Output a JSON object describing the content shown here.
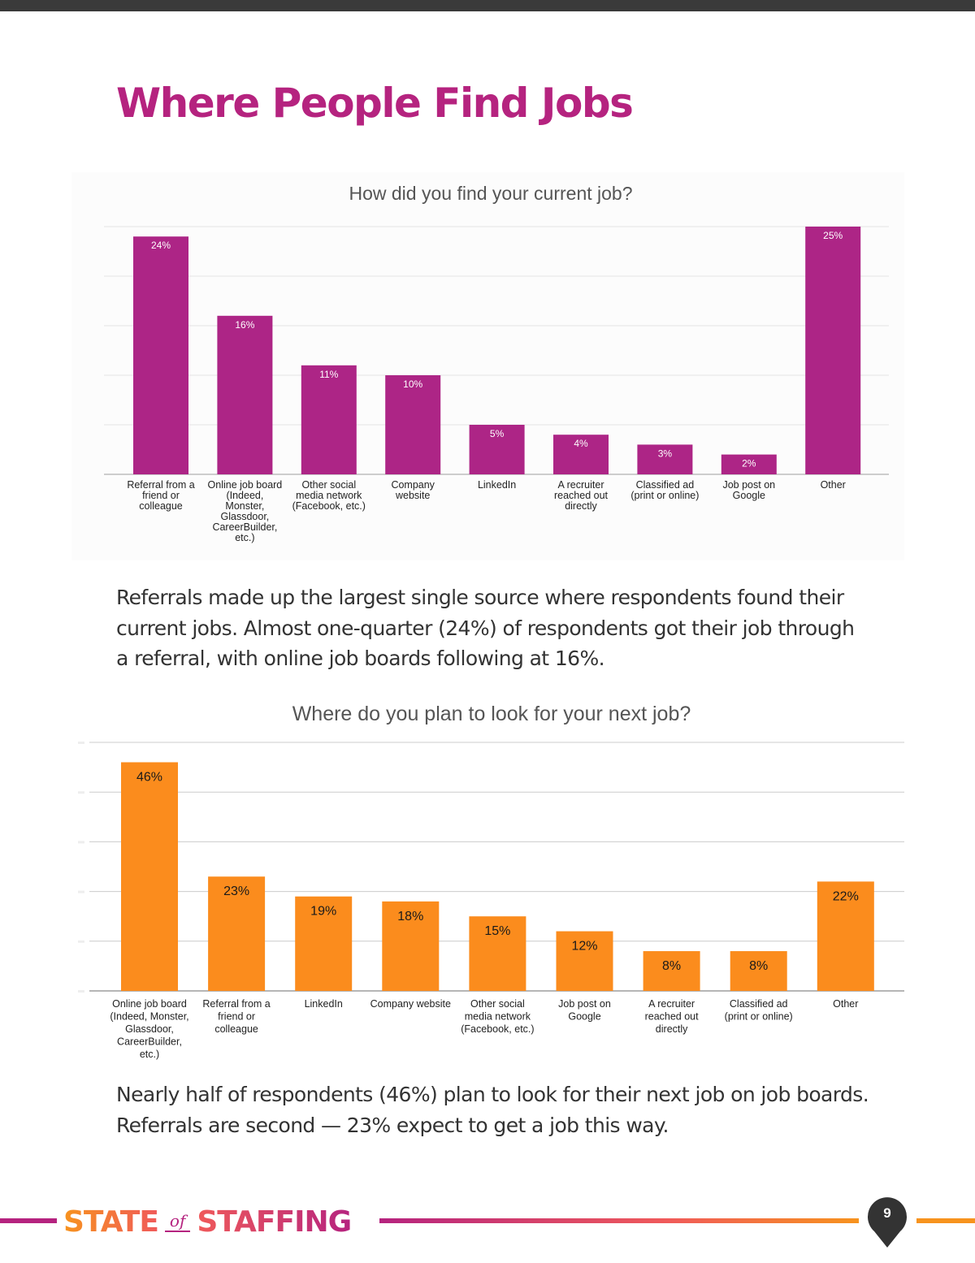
{
  "page": {
    "title": "Where People Find Jobs",
    "page_number": "9"
  },
  "paragraphs": {
    "p1": "Referrals made up the largest single source where respondents found their current jobs. Almost one-quarter (24%) of respondents got their job through a referral, with online job boards following at 16%.",
    "p2": "Nearly half of respondents (46%) plan to look for their next job on job boards. Referrals are second — 23% expect to get a job this way."
  },
  "footer": {
    "brand_state": "STATE",
    "brand_of": "of",
    "brand_staffing": "STAFFING"
  },
  "colors": {
    "title": "#b5237f",
    "bar_purple": "#ad2586",
    "bar_orange": "#fb8c1d",
    "gridline": "#e3e3e3",
    "axis": "#bdbdbd"
  },
  "chart_data": [
    {
      "type": "bar",
      "title": "How did you find your current job?",
      "xlabel": "",
      "ylabel": "",
      "ylim": [
        0,
        25
      ],
      "grid": true,
      "categories": [
        [
          "Referral from a",
          "friend or",
          "colleague"
        ],
        [
          "Online job board",
          "(Indeed,",
          "Monster,",
          "Glassdoor,",
          "CareerBuilder,",
          "etc.)"
        ],
        [
          "Other social",
          "media network",
          "(Facebook, etc.)"
        ],
        [
          "Company",
          "website"
        ],
        [
          "LinkedIn"
        ],
        [
          "A recruiter",
          "reached out",
          "directly"
        ],
        [
          "Classified ad",
          "(print or online)"
        ],
        [
          "Job post on",
          "Google"
        ],
        [
          "Other"
        ]
      ],
      "values": [
        24,
        16,
        11,
        10,
        5,
        4,
        3,
        2,
        25
      ],
      "data_labels": [
        "24%",
        "16%",
        "11%",
        "10%",
        "5%",
        "4%",
        "3%",
        "2%",
        "25%"
      ]
    },
    {
      "type": "bar",
      "title": "Where do you plan to look for your next job?",
      "xlabel": "",
      "ylabel": "",
      "ylim": [
        0,
        50
      ],
      "grid": true,
      "categories": [
        [
          "Online job board",
          "(Indeed, Monster,",
          "Glassdoor,",
          "CareerBuilder,",
          "etc.)"
        ],
        [
          "Referral from a",
          "friend or",
          "colleague"
        ],
        [
          "LinkedIn"
        ],
        [
          "Company website"
        ],
        [
          "Other social",
          "media network",
          "(Facebook, etc.)"
        ],
        [
          "Job post on",
          "Google"
        ],
        [
          "A recruiter",
          "reached out",
          "directly"
        ],
        [
          "Classified ad",
          "(print or online)"
        ],
        [
          "Other"
        ]
      ],
      "values": [
        46,
        23,
        19,
        18,
        15,
        12,
        8,
        8,
        22
      ],
      "data_labels": [
        "46%",
        "23%",
        "19%",
        "18%",
        "15%",
        "12%",
        "8%",
        "8%",
        "22%"
      ]
    }
  ]
}
